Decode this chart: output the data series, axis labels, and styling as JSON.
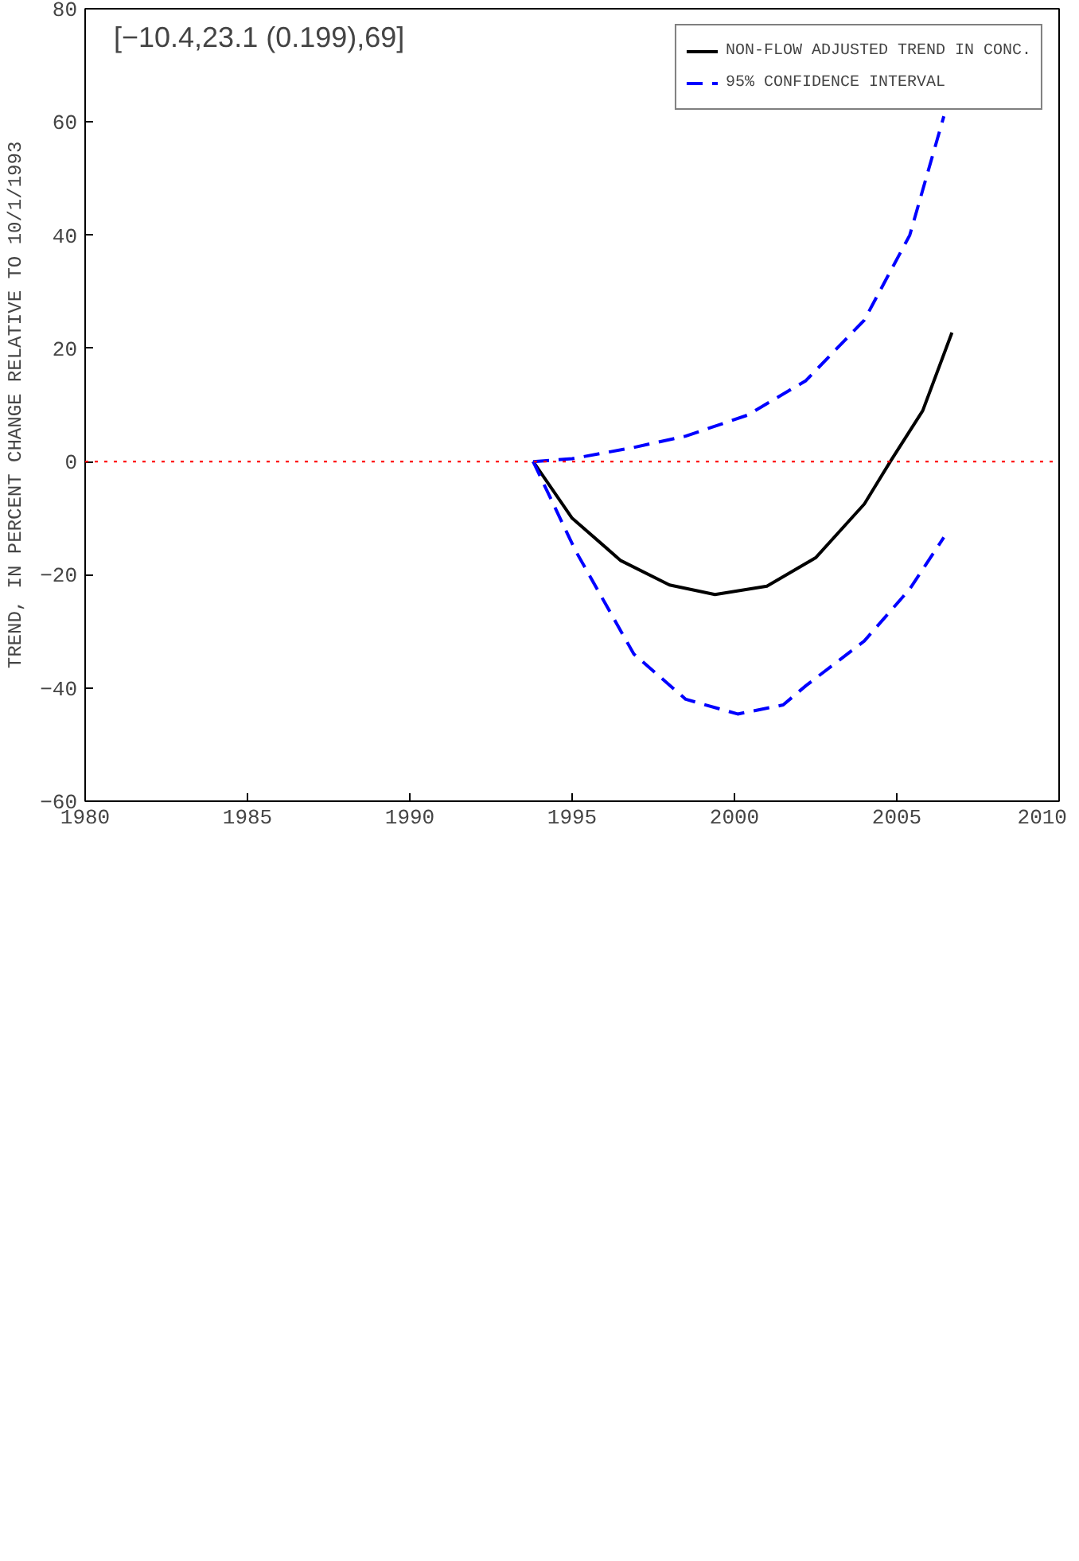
{
  "chart_data": {
    "type": "line",
    "xlabel": null,
    "ylabel": "TREND, IN PERCENT CHANGE RELATIVE TO 10/1/1993",
    "xlim": [
      1980,
      2010
    ],
    "xticks": [
      1980,
      1985,
      1990,
      1995,
      2000,
      2005,
      2010
    ],
    "ylim": [
      -60,
      80
    ],
    "yticks": [
      -60,
      -40,
      -20,
      0,
      20,
      40,
      60,
      80
    ],
    "grid": false,
    "legend": "top right",
    "marker": "none",
    "series": [
      {
        "name": "NON-FLOW ADJUSTED TREND IN CONC.",
        "color": "#000000",
        "line_style": "solid",
        "x": [
          1993.8,
          1995,
          1996.5,
          1998,
          1999.4,
          2001,
          2002.5,
          2004,
          2004.8,
          2005.8,
          2006.7
        ],
        "values": [
          0,
          -10,
          -17.5,
          -21.8,
          -23.5,
          -22,
          -17,
          -7.5,
          0,
          9,
          22.8
        ]
      },
      {
        "name": "95% CONFIDENCE INTERVAL",
        "color": "#0000ff",
        "line_style": "dashed",
        "x": [
          1993.8,
          1995,
          1996.9,
          1998.5,
          2000.4,
          2002.2,
          2004,
          2005.4,
          2006.45
        ],
        "values": [
          0,
          0.5,
          2.5,
          4.5,
          8.2,
          14.3,
          25,
          40,
          61
        ]
      },
      {
        "color": "#0000ff",
        "line_style": "dashed",
        "x": [
          1993.8,
          1995.1,
          1996.9,
          1998.5,
          2000.1,
          2001.5,
          2002.2,
          2004,
          2005.4,
          2006.45
        ],
        "values": [
          0,
          -15.7,
          -34,
          -42,
          -44.6,
          -43,
          -39.6,
          -31.7,
          -22.5,
          -13.4
        ]
      }
    ],
    "ref_lines": [
      {
        "axis": "y",
        "value": 0,
        "color": "#ff0000",
        "line_style": "dotted"
      }
    ],
    "annotations": [
      "[−10.4,23.1 (0.199),69]"
    ]
  }
}
